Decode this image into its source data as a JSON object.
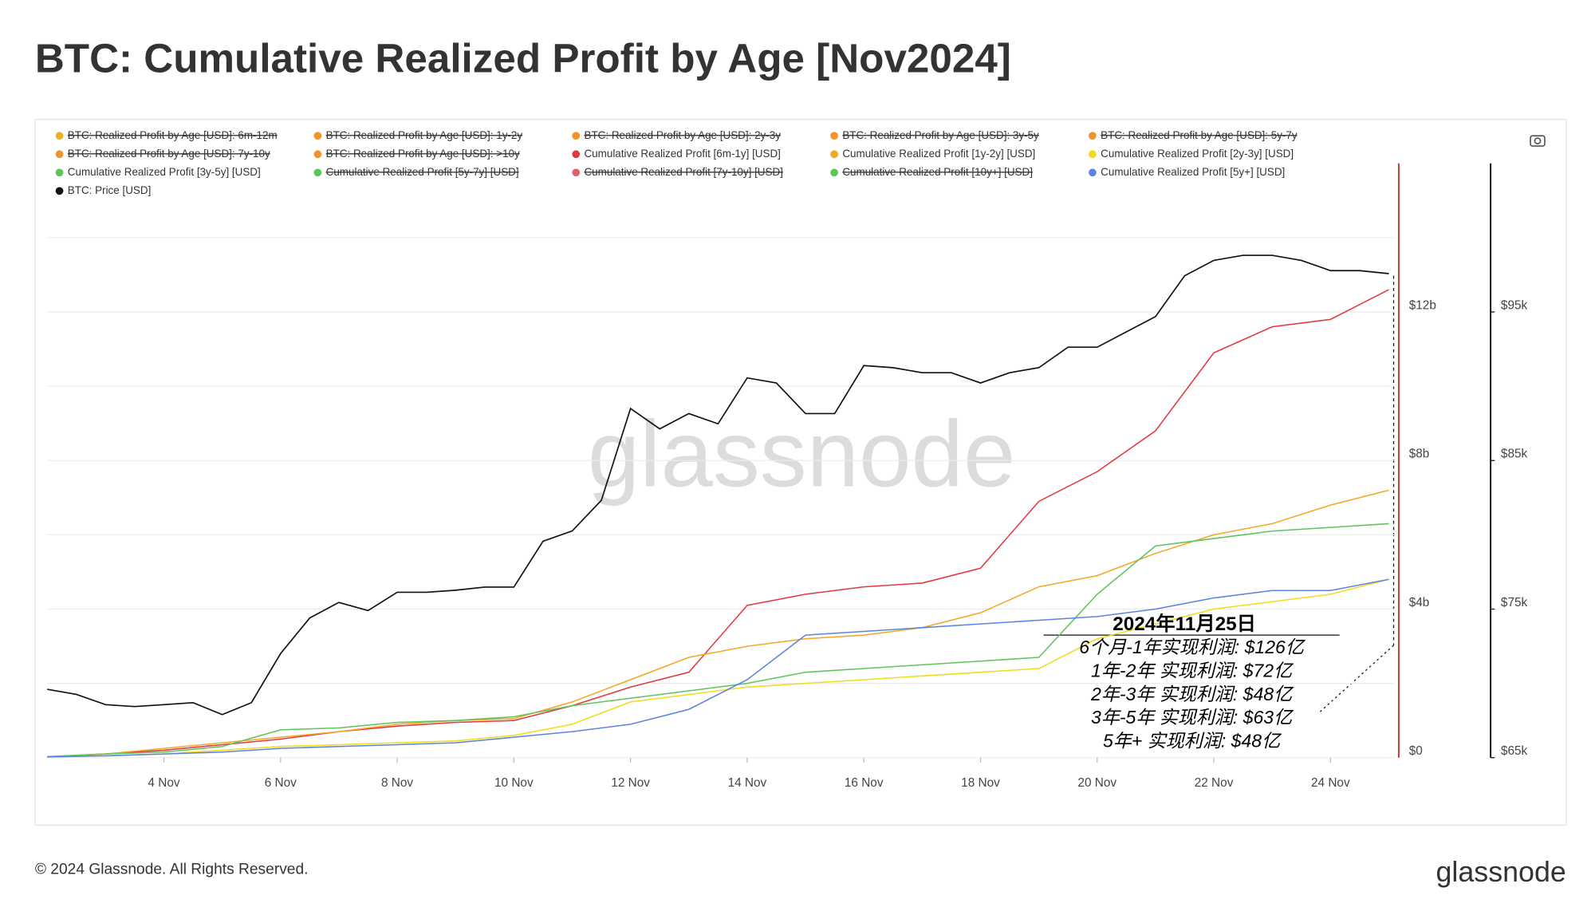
{
  "title": "BTC: Cumulative Realized Profit by Age [Nov2024]",
  "footer": {
    "copyright": "© 2024 Glassnode. All Rights Reserved.",
    "logo": "glassnode"
  },
  "chart_data": {
    "type": "line",
    "watermark": "glassnode",
    "x": [
      2,
      3,
      4,
      5,
      6,
      7,
      8,
      9,
      10,
      11,
      12,
      13,
      14,
      15,
      16,
      17,
      18,
      19,
      20,
      21,
      22,
      23,
      24,
      25
    ],
    "xlim": [
      2,
      25.1
    ],
    "xticks": [
      {
        "value": 4,
        "label": "4 Nov"
      },
      {
        "value": 6,
        "label": "6 Nov"
      },
      {
        "value": 8,
        "label": "8 Nov"
      },
      {
        "value": 10,
        "label": "10 Nov"
      },
      {
        "value": 12,
        "label": "12 Nov"
      },
      {
        "value": 14,
        "label": "14 Nov"
      },
      {
        "value": 16,
        "label": "16 Nov"
      },
      {
        "value": 18,
        "label": "18 Nov"
      },
      {
        "value": 20,
        "label": "20 Nov"
      },
      {
        "value": 22,
        "label": "22 Nov"
      },
      {
        "value": 24,
        "label": "24 Nov"
      }
    ],
    "ylim": [
      0,
      16
    ],
    "yticks": [
      {
        "value": 0,
        "label": "$0"
      },
      {
        "value": 4,
        "label": "$4b"
      },
      {
        "value": 8,
        "label": "$8b"
      },
      {
        "value": 12,
        "label": "$12b"
      }
    ],
    "minor_grid": [
      2,
      6,
      10,
      14
    ],
    "y2lim": [
      65000,
      105000
    ],
    "y2ticks": [
      {
        "value": 65000,
        "label": "$65k"
      },
      {
        "value": 75000,
        "label": "$75k"
      },
      {
        "value": 85000,
        "label": "$85k"
      },
      {
        "value": 95000,
        "label": "$95k"
      }
    ],
    "grid": true,
    "series": [
      {
        "name": "BTC: Realized Profit by Age [USD]: 6m-12m",
        "color": "#e8b32a",
        "hidden": true
      },
      {
        "name": "BTC: Realized Profit by Age [USD]: 1y-2y",
        "color": "#f0932b",
        "hidden": true
      },
      {
        "name": "BTC: Realized Profit by Age [USD]: 2y-3y",
        "color": "#f0932b",
        "hidden": true
      },
      {
        "name": "BTC: Realized Profit by Age [USD]: 3y-5y",
        "color": "#f0932b",
        "hidden": true
      },
      {
        "name": "BTC: Realized Profit by Age [USD]: 5y-7y",
        "color": "#f0932b",
        "hidden": true
      },
      {
        "name": "BTC: Realized Profit by Age [USD]: 7y-10y",
        "color": "#f0932b",
        "hidden": true
      },
      {
        "name": "BTC: Realized Profit by Age [USD]: >10y",
        "color": "#f0932b",
        "hidden": true
      },
      {
        "name": "Cumulative Realized Profit [6m-1y] [USD]",
        "color": "#e0393e",
        "values": [
          0.02,
          0.1,
          0.2,
          0.35,
          0.5,
          0.7,
          0.85,
          0.95,
          1.0,
          1.4,
          1.9,
          2.3,
          4.1,
          4.4,
          4.6,
          4.7,
          5.1,
          6.9,
          7.7,
          8.8,
          10.9,
          11.6,
          11.8,
          12.6
        ]
      },
      {
        "name": "Cumulative Realized Profit [1y-2y] [USD]",
        "color": "#f5a623",
        "values": [
          0.02,
          0.1,
          0.25,
          0.4,
          0.55,
          0.7,
          0.9,
          1.0,
          1.05,
          1.5,
          2.1,
          2.7,
          3.0,
          3.2,
          3.3,
          3.5,
          3.9,
          4.6,
          4.9,
          5.5,
          6.0,
          6.3,
          6.8,
          7.2
        ]
      },
      {
        "name": "Cumulative Realized Profit [2y-3y] [USD]",
        "color": "#f2dc1a",
        "values": [
          0.02,
          0.05,
          0.1,
          0.2,
          0.3,
          0.35,
          0.4,
          0.45,
          0.6,
          0.9,
          1.5,
          1.7,
          1.9,
          2.0,
          2.1,
          2.2,
          2.3,
          2.4,
          3.2,
          3.6,
          4.0,
          4.2,
          4.4,
          4.8
        ]
      },
      {
        "name": "Cumulative Realized Profit [3y-5y] [USD]",
        "color": "#5fc45a",
        "values": [
          0.03,
          0.1,
          0.15,
          0.3,
          0.75,
          0.8,
          0.95,
          1.0,
          1.1,
          1.4,
          1.6,
          1.8,
          2.0,
          2.3,
          2.4,
          2.5,
          2.6,
          2.7,
          4.4,
          5.7,
          5.9,
          6.1,
          6.2,
          6.3
        ]
      },
      {
        "name": "Cumulative Realized Profit [5y-7y] [USD]",
        "color": "#5fc45a",
        "hidden": true
      },
      {
        "name": "Cumulative Realized Profit [7y-10y] [USD]",
        "color": "#d9646a",
        "hidden": true
      },
      {
        "name": "Cumulative Realized Profit [10y+] [USD]",
        "color": "#5fc45a",
        "hidden": true
      },
      {
        "name": "Cumulative Realized Profit [5y+] [USD]",
        "color": "#5b84e0",
        "values": [
          0.02,
          0.05,
          0.1,
          0.15,
          0.25,
          0.3,
          0.35,
          0.4,
          0.55,
          0.7,
          0.9,
          1.3,
          2.1,
          3.3,
          3.4,
          3.5,
          3.6,
          3.7,
          3.8,
          4.0,
          4.3,
          4.5,
          4.5,
          4.8
        ]
      },
      {
        "name": "BTC: Price [USD]",
        "color": "#111111",
        "axis": "y2",
        "x": [
          2,
          2.5,
          3,
          3.5,
          4,
          4.5,
          5,
          5.5,
          6,
          6.5,
          7,
          7.5,
          8,
          8.5,
          9,
          9.5,
          10,
          10.5,
          11,
          11.5,
          12,
          12.5,
          13,
          13.5,
          14,
          14.5,
          15,
          15.5,
          16,
          16.5,
          17,
          17.5,
          18,
          18.5,
          19,
          19.5,
          20,
          20.5,
          21,
          21.5,
          22,
          22.5,
          23,
          23.5,
          24,
          24.5,
          25
        ],
        "values": [
          69600,
          69260,
          68570,
          68440,
          68570,
          68700,
          67900,
          68700,
          72000,
          74400,
          75450,
          74900,
          76130,
          76130,
          76270,
          76480,
          76480,
          79570,
          80260,
          82320,
          88500,
          87130,
          88160,
          87470,
          90560,
          90220,
          88160,
          88160,
          91390,
          91250,
          90910,
          90910,
          90220,
          90910,
          91250,
          92630,
          92630,
          93660,
          94690,
          97440,
          98470,
          98810,
          98810,
          98470,
          97780,
          97780,
          97580
        ]
      }
    ],
    "annotation": {
      "title": "2024年11月25日",
      "lines": [
        "6个月-1年实现利润: $126亿",
        "1年-2年 实现利润: $72亿",
        "2年-3年 实现利润: $48亿",
        "3年-5年 实现利润: $63亿",
        "5年+ 实现利润: $48亿"
      ]
    }
  }
}
